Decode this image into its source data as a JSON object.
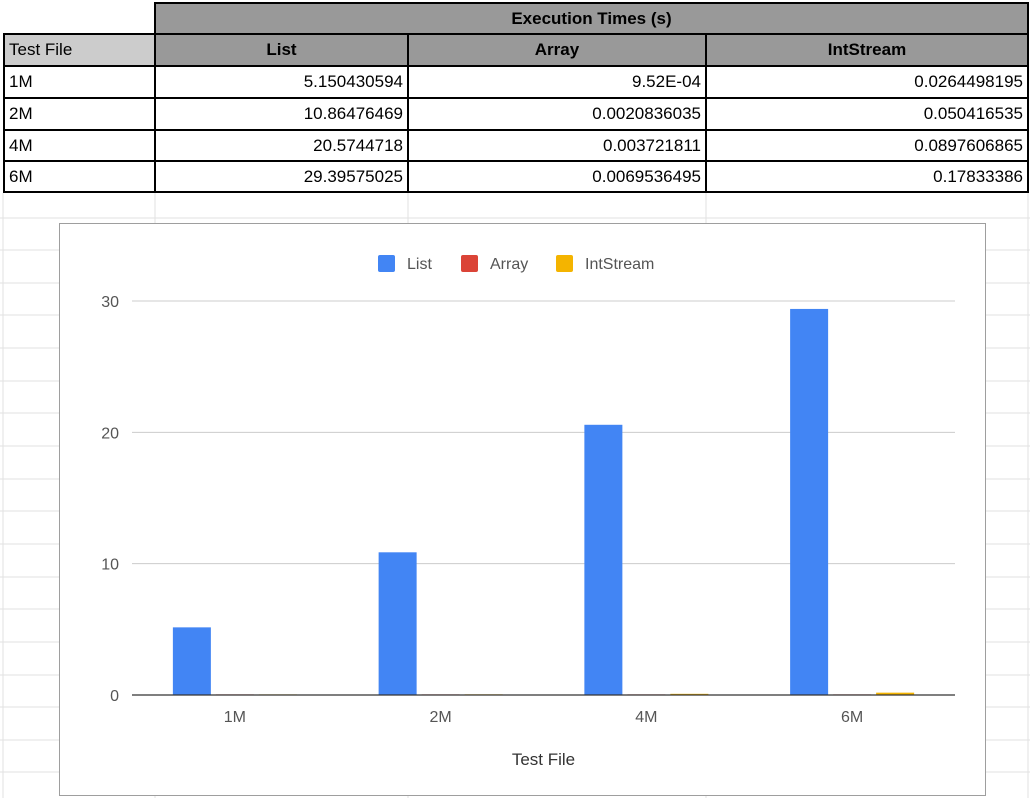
{
  "table": {
    "title": "Execution Times (s)",
    "row_header": "Test File",
    "columns": [
      "List",
      "Array",
      "IntStream"
    ],
    "rows": [
      {
        "label": "1M",
        "cells": [
          "5.150430594",
          "9.52E-04",
          "0.0264498195"
        ]
      },
      {
        "label": "2M",
        "cells": [
          "10.86476469",
          "0.0020836035",
          "0.050416535"
        ]
      },
      {
        "label": "4M",
        "cells": [
          "20.5744718",
          "0.003721811",
          "0.0897606865"
        ]
      },
      {
        "label": "6M",
        "cells": [
          "29.39575025",
          "0.0069536495",
          "0.17833386"
        ]
      }
    ]
  },
  "chart_data": {
    "type": "bar",
    "categories": [
      "1M",
      "2M",
      "4M",
      "6M"
    ],
    "series": [
      {
        "name": "List",
        "values": [
          5.150430594,
          10.86476469,
          20.5744718,
          29.39575025
        ],
        "color": "#4285f4"
      },
      {
        "name": "Array",
        "values": [
          0.000952,
          0.0020836035,
          0.003721811,
          0.0069536495
        ],
        "color": "#db4437"
      },
      {
        "name": "IntStream",
        "values": [
          0.0264498195,
          0.050416535,
          0.0897606865,
          0.17833386
        ],
        "color": "#f4b400"
      }
    ],
    "title": "",
    "xlabel": "Test File",
    "ylabel": "",
    "ylim": [
      0,
      30
    ],
    "yticks": [
      0,
      10,
      20,
      30
    ],
    "legend": "top",
    "grid": true
  }
}
